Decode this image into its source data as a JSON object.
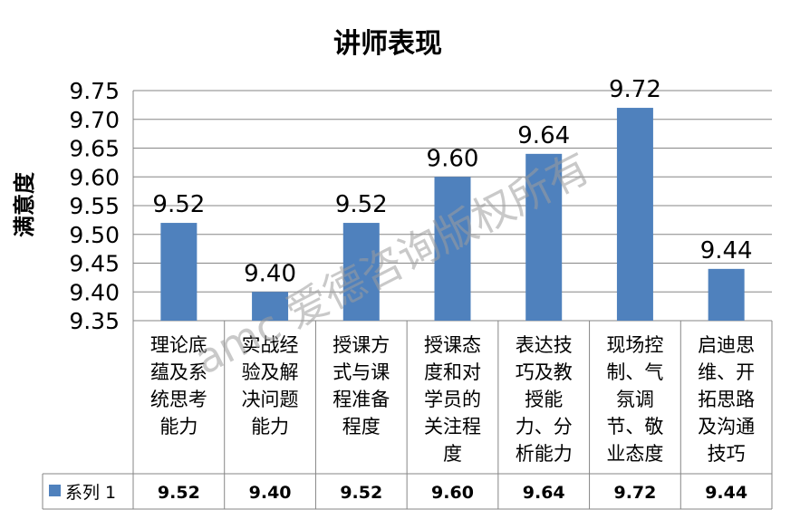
{
  "chart_data": {
    "type": "bar",
    "title": "讲师表现",
    "xlabel": "",
    "ylabel": "满意度",
    "ylim": [
      9.35,
      9.75
    ],
    "yticks": [
      "9.35",
      "9.40",
      "9.45",
      "9.50",
      "9.55",
      "9.60",
      "9.65",
      "9.70",
      "9.75"
    ],
    "grid": true,
    "legend": "data-table",
    "categories": [
      "理论底蕴及系统思考能力",
      "实战经验及解决问题能力",
      "授课方式与课程准备程度",
      "授课态度和对学员的关注程度",
      "表达技巧及教授能力、分析能力",
      "现场控制、气氛调节、敬业态度",
      "启迪思维、开拓思路及沟通技巧"
    ],
    "category_lines": [
      [
        "理论底",
        "蕴及系",
        "统思考",
        "能力"
      ],
      [
        "实战经",
        "验及解",
        "决问题",
        "能力"
      ],
      [
        "授课方",
        "式与课",
        "程准备",
        "程度"
      ],
      [
        "授课态",
        "度和对",
        "学员的",
        "关注程",
        "度"
      ],
      [
        "表达技",
        "巧及教",
        "授能",
        "力、分",
        "析能力"
      ],
      [
        "现场控",
        "制、气",
        "氛调",
        "节、敬",
        "业态度"
      ],
      [
        "启迪思",
        "维、开",
        "拓思路",
        "及沟通",
        "技巧"
      ]
    ],
    "series": [
      {
        "name": "系列 1",
        "values": [
          9.52,
          9.4,
          9.52,
          9.6,
          9.64,
          9.72,
          9.44
        ],
        "labels": [
          "9.52",
          "9.40",
          "9.52",
          "9.60",
          "9.64",
          "9.72",
          "9.44"
        ]
      }
    ]
  },
  "colors": {
    "bar": "#4f81bd",
    "grid": "#868686"
  },
  "watermark": "amc 爱德咨询版权所有"
}
